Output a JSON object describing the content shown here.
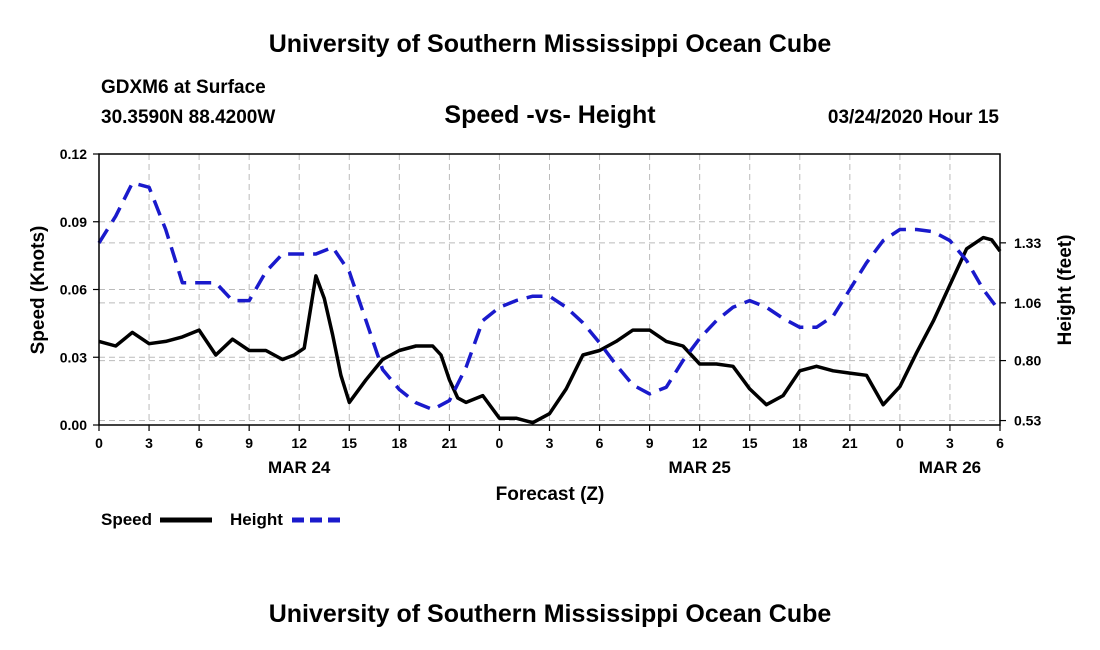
{
  "header": {
    "title": "University of Southern Mississippi Ocean Cube",
    "station": "GDXM6 at Surface",
    "coords": "30.3590N 88.4200W",
    "chart_title": "Speed -vs- Height",
    "datetime": "03/24/2020 Hour 15"
  },
  "footer": {
    "title": "University of Southern Mississippi Ocean Cube"
  },
  "legend": {
    "speed_label": "Speed",
    "height_label": "Height"
  },
  "colors": {
    "speed": "#000000",
    "height": "#1a1acc",
    "grid": "#bbbbbb"
  },
  "chart_data": {
    "type": "line",
    "title": "Speed -vs- Height",
    "xlabel": "Forecast (Z)",
    "ylabel": "Speed (Knots)",
    "y2label": "Height (feet)",
    "xlim": [
      0,
      54
    ],
    "ylim": [
      0,
      0.12
    ],
    "y2lim": [
      0.51,
      1.73
    ],
    "x_ticks": [
      0,
      3,
      6,
      9,
      12,
      15,
      18,
      21,
      24,
      27,
      30,
      33,
      36,
      39,
      42,
      45,
      48,
      51,
      54
    ],
    "x_tick_labels": [
      "0",
      "3",
      "6",
      "9",
      "12",
      "15",
      "18",
      "21",
      "0",
      "3",
      "6",
      "9",
      "12",
      "15",
      "18",
      "21",
      "0",
      "3",
      "6"
    ],
    "date_labels": [
      {
        "x": 12,
        "label": "MAR 24"
      },
      {
        "x": 36,
        "label": "MAR 25"
      },
      {
        "x": 51,
        "label": "MAR 26"
      }
    ],
    "y_ticks": [
      0.0,
      0.03,
      0.06,
      0.09,
      0.12
    ],
    "y_tick_labels": [
      "0.00",
      "0.03",
      "0.06",
      "0.09",
      "0.12"
    ],
    "y2_ticks": [
      0.53,
      0.8,
      1.06,
      1.33
    ],
    "y2_tick_labels": [
      "0.53",
      "0.80",
      "1.06",
      "1.33"
    ],
    "series": [
      {
        "name": "Speed",
        "axis": "left",
        "style": "solid",
        "x": [
          0,
          1,
          2,
          3,
          4,
          5,
          6,
          7,
          8,
          9,
          10,
          11,
          11.7,
          12.3,
          13,
          13.5,
          14,
          14.5,
          15,
          16,
          17,
          18,
          19,
          20,
          20.5,
          21,
          21.5,
          22,
          23,
          24,
          25,
          26,
          27,
          28,
          29,
          30,
          31,
          32,
          33,
          34,
          35,
          36,
          37,
          38,
          39,
          40,
          41,
          42,
          43,
          44,
          45,
          46,
          47,
          48,
          49,
          50,
          51,
          52,
          53,
          53.5,
          54
        ],
        "values": [
          0.037,
          0.035,
          0.041,
          0.036,
          0.037,
          0.039,
          0.042,
          0.031,
          0.038,
          0.033,
          0.033,
          0.029,
          0.031,
          0.034,
          0.066,
          0.056,
          0.04,
          0.022,
          0.01,
          0.02,
          0.029,
          0.033,
          0.035,
          0.035,
          0.031,
          0.02,
          0.012,
          0.01,
          0.013,
          0.003,
          0.003,
          0.001,
          0.005,
          0.016,
          0.031,
          0.033,
          0.037,
          0.042,
          0.042,
          0.037,
          0.035,
          0.027,
          0.027,
          0.026,
          0.016,
          0.009,
          0.013,
          0.024,
          0.026,
          0.024,
          0.023,
          0.022,
          0.009,
          0.017,
          0.032,
          0.046,
          0.062,
          0.078,
          0.083,
          0.082,
          0.077
        ]
      },
      {
        "name": "Height",
        "axis": "right",
        "style": "dashed",
        "x": [
          0,
          1,
          2,
          3,
          4,
          5,
          6,
          7,
          8,
          9,
          10,
          11,
          12,
          13,
          14,
          15,
          16,
          17,
          18,
          19,
          20,
          21,
          22,
          23,
          24,
          25,
          26,
          27,
          28,
          29,
          30,
          31,
          32,
          33,
          34,
          35,
          36,
          37,
          38,
          39,
          40,
          41,
          42,
          43,
          44,
          45,
          46,
          47,
          48,
          49,
          50,
          51,
          52,
          53,
          54
        ],
        "values": [
          1.33,
          1.45,
          1.6,
          1.58,
          1.39,
          1.15,
          1.15,
          1.15,
          1.07,
          1.07,
          1.2,
          1.28,
          1.28,
          1.28,
          1.31,
          1.2,
          0.98,
          0.76,
          0.67,
          0.61,
          0.58,
          0.62,
          0.77,
          0.98,
          1.04,
          1.07,
          1.09,
          1.09,
          1.04,
          0.97,
          0.88,
          0.78,
          0.69,
          0.65,
          0.68,
          0.8,
          0.9,
          0.98,
          1.04,
          1.07,
          1.04,
          0.99,
          0.95,
          0.95,
          1.0,
          1.12,
          1.24,
          1.34,
          1.39,
          1.39,
          1.38,
          1.34,
          1.25,
          1.12,
          1.02
        ]
      }
    ]
  }
}
